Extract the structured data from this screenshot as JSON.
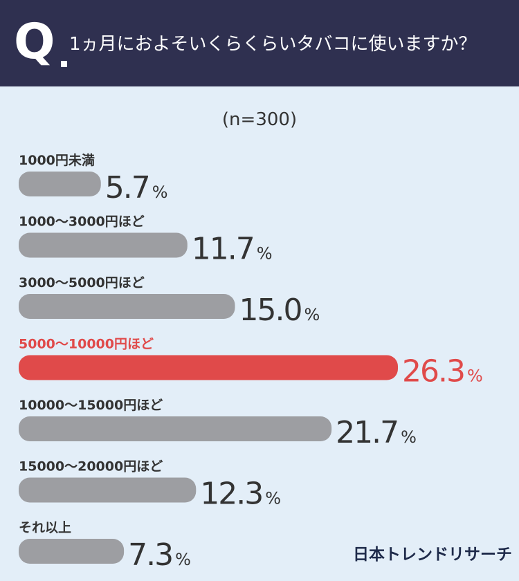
{
  "header": {
    "q_letter": "Q",
    "question": "1ヵ月におよそいくらくらいタバコに使いますか？"
  },
  "sample": "(n=300)",
  "brand": "日本トレンドリサーチ",
  "colors": {
    "header_bg": "#2f3050",
    "background": "#e3eef8",
    "bar_default": "#9d9ea2",
    "bar_highlight": "#e04a4a",
    "text_default": "#333333",
    "label_highlight": "#e04a4a"
  },
  "chart_data": {
    "type": "bar",
    "orientation": "horizontal",
    "categories": [
      "1000円未満",
      "1000〜3000円ほど",
      "3000〜5000円ほど",
      "5000〜10000円ほど",
      "10000〜15000円ほど",
      "15000〜20000円ほど",
      "それ以上"
    ],
    "values": [
      5.7,
      11.7,
      15.0,
      26.3,
      21.7,
      12.3,
      7.3
    ],
    "value_labels": [
      "5.7",
      "11.7",
      "15.0",
      "26.3",
      "21.7",
      "12.3",
      "7.3"
    ],
    "unit": "%",
    "highlight_index": 3,
    "xlim": [
      0,
      26.3
    ],
    "grid": false,
    "legend": "none"
  }
}
